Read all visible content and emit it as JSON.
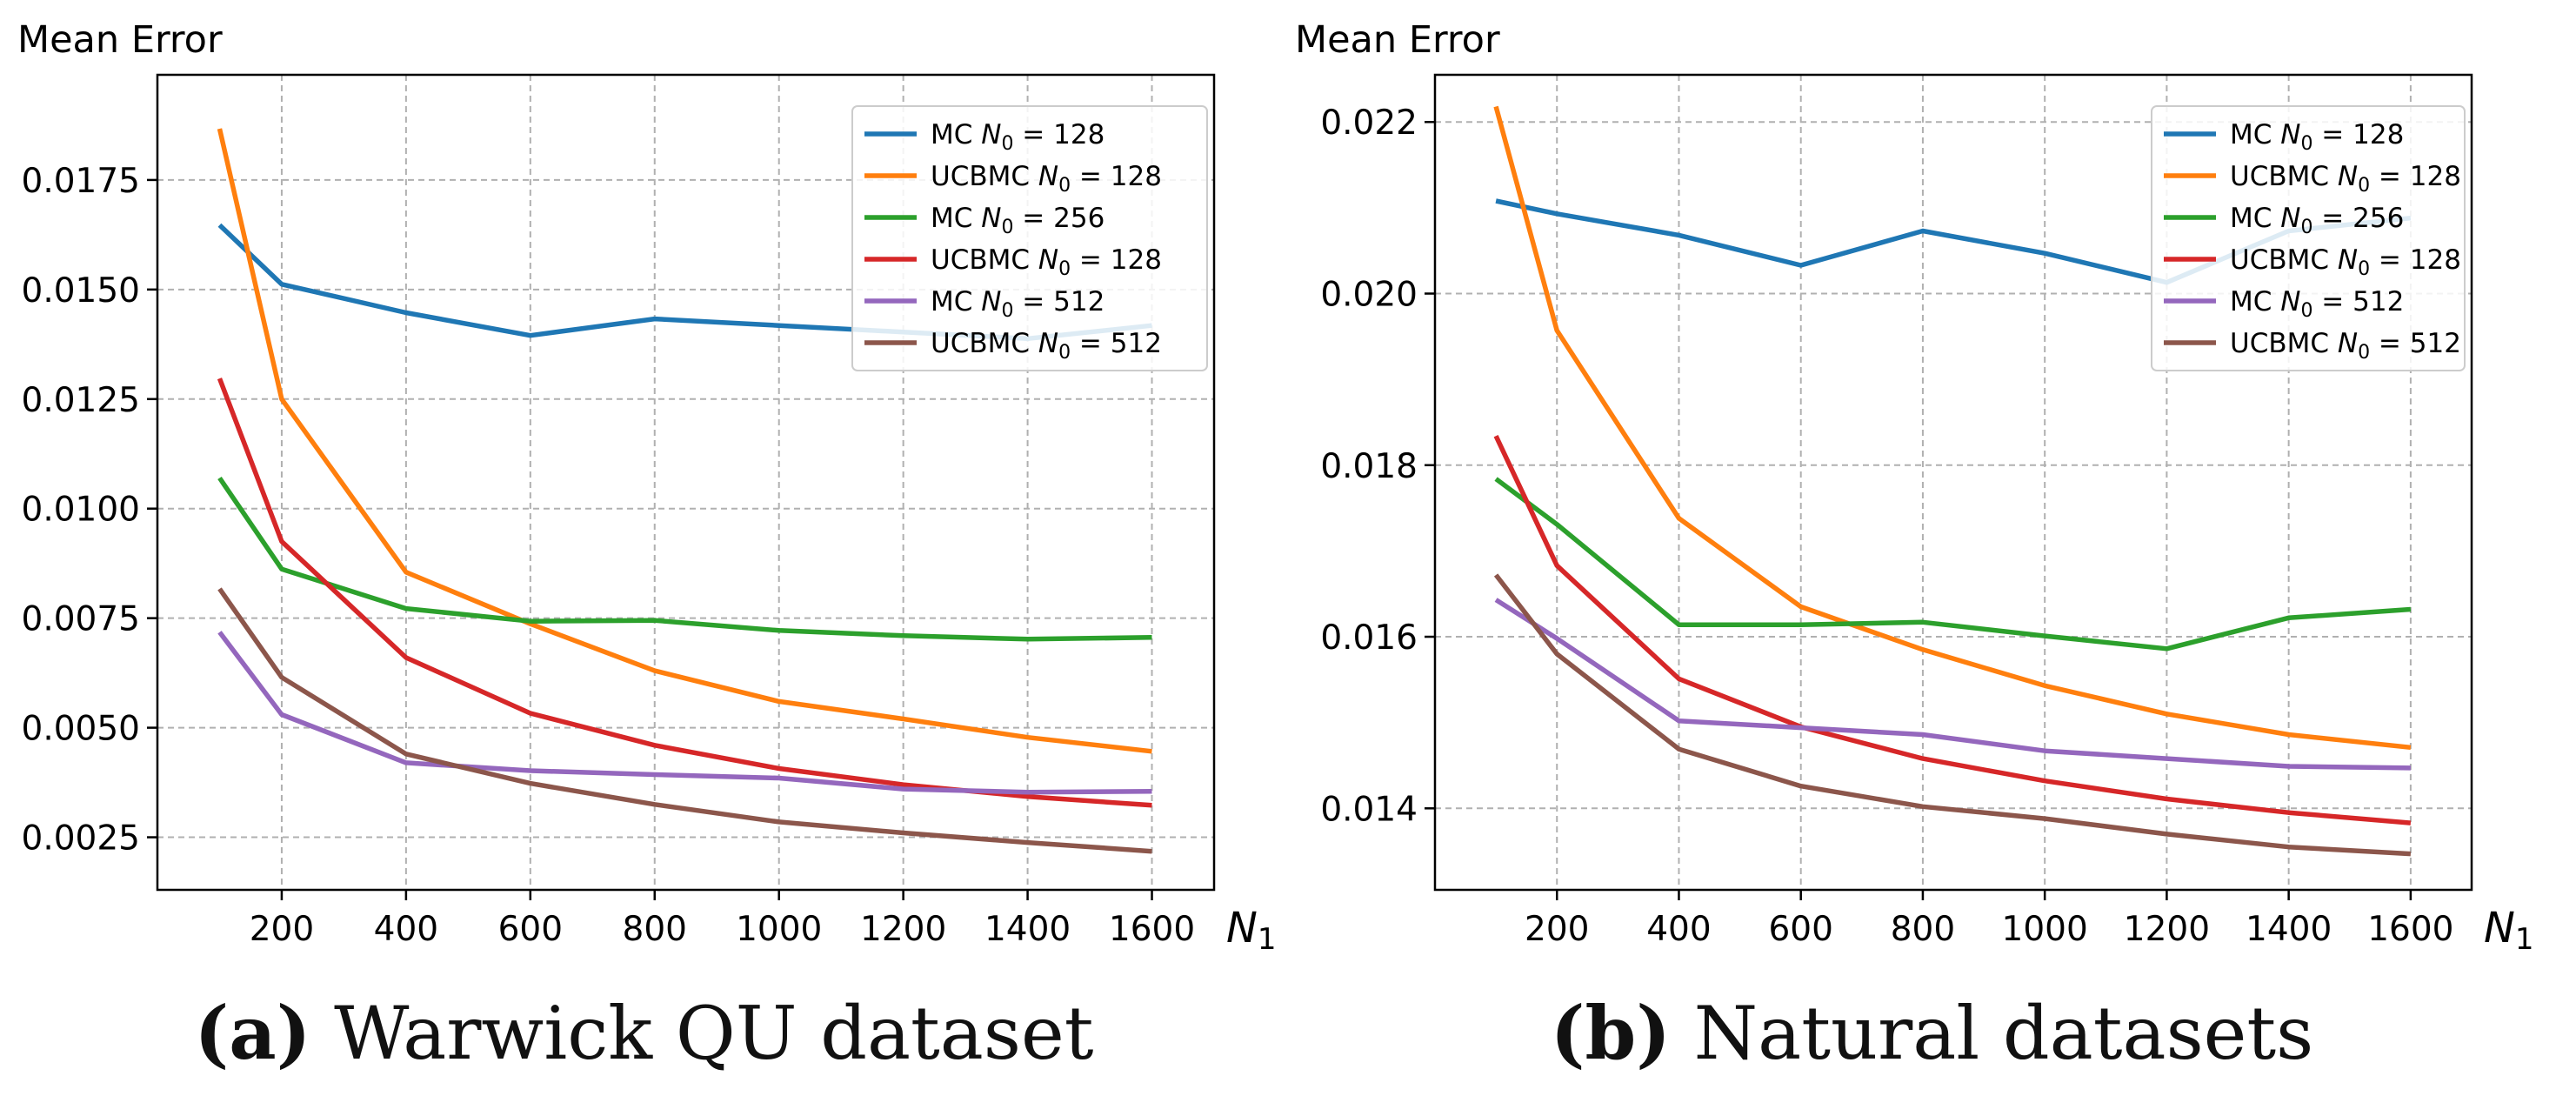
{
  "chart_data": [
    {
      "type": "line",
      "ylabel": "Mean Error",
      "xlabel": "N1",
      "x": [
        100,
        200,
        400,
        600,
        800,
        1000,
        1200,
        1400,
        1600
      ],
      "xticks": [
        "200",
        "400",
        "600",
        "800",
        "1000",
        "1200",
        "1400",
        "1600"
      ],
      "xtick_values": [
        200,
        400,
        600,
        800,
        1000,
        1200,
        1400,
        1600
      ],
      "yticks": [
        "0.0025",
        "0.0050",
        "0.0075",
        "0.0100",
        "0.0125",
        "0.0150",
        "0.0175"
      ],
      "ytick_values": [
        0.0025,
        0.005,
        0.0075,
        0.01,
        0.0125,
        0.015,
        0.0175
      ],
      "xlim": [
        0,
        1700
      ],
      "ylim": [
        0.0013,
        0.0199
      ],
      "grid": true,
      "legend_position": "upper right",
      "caption_letter": "(a)",
      "caption_text": " Warwick QU dataset",
      "series": [
        {
          "name": "MC N0 = 128",
          "color": "#1f77b4",
          "values": [
            0.01647,
            0.01512,
            0.01447,
            0.01395,
            0.01433,
            0.01418,
            0.01403,
            0.01388,
            0.01418
          ]
        },
        {
          "name": "UCBMC N0 = 128",
          "color": "#ff7f0e",
          "values": [
            0.01867,
            0.0125,
            0.00855,
            0.00737,
            0.0063,
            0.0056,
            0.0052,
            0.00478,
            0.00446
          ]
        },
        {
          "name": "MC N0 = 256",
          "color": "#2ca02c",
          "values": [
            0.0107,
            0.00862,
            0.00772,
            0.00743,
            0.00745,
            0.00722,
            0.0071,
            0.00702,
            0.00706
          ]
        },
        {
          "name": "UCBMC N0 = 128",
          "color": "#d62728",
          "values": [
            0.01297,
            0.00925,
            0.0066,
            0.00533,
            0.0046,
            0.00407,
            0.0037,
            0.00343,
            0.00323
          ]
        },
        {
          "name": "MC N0 = 512",
          "color": "#9467bd",
          "values": [
            0.00718,
            0.0053,
            0.0042,
            0.00402,
            0.00393,
            0.00385,
            0.0036,
            0.00353,
            0.00355
          ]
        },
        {
          "name": "UCBMC N0 = 512",
          "color": "#8c564b",
          "values": [
            0.00817,
            0.00615,
            0.0044,
            0.00373,
            0.00325,
            0.00285,
            0.0026,
            0.00238,
            0.00218
          ]
        }
      ]
    },
    {
      "type": "line",
      "ylabel": "Mean Error",
      "xlabel": "N1",
      "x": [
        100,
        200,
        400,
        600,
        800,
        1000,
        1200,
        1400,
        1600
      ],
      "xticks": [
        "200",
        "400",
        "600",
        "800",
        "1000",
        "1200",
        "1400",
        "1600"
      ],
      "xtick_values": [
        200,
        400,
        600,
        800,
        1000,
        1200,
        1400,
        1600
      ],
      "yticks": [
        "0.014",
        "0.016",
        "0.018",
        "0.020",
        "0.022"
      ],
      "ytick_values": [
        0.014,
        0.016,
        0.018,
        0.02,
        0.022
      ],
      "xlim": [
        0,
        1700
      ],
      "ylim": [
        0.01305,
        0.02255
      ],
      "grid": true,
      "legend_position": "upper right",
      "caption_letter": "(b)",
      "caption_text": " Natural datasets",
      "series": [
        {
          "name": "MC N0 = 128",
          "color": "#1f77b4",
          "values": [
            0.02108,
            0.02093,
            0.02068,
            0.02033,
            0.02073,
            0.02047,
            0.02013,
            0.02073,
            0.02088
          ]
        },
        {
          "name": "UCBMC N0 = 128",
          "color": "#ff7f0e",
          "values": [
            0.02218,
            0.01957,
            0.01738,
            0.01635,
            0.01585,
            0.01543,
            0.0151,
            0.01486,
            0.01471
          ]
        },
        {
          "name": "MC N0 = 256",
          "color": "#2ca02c",
          "values": [
            0.01784,
            0.01731,
            0.01614,
            0.01614,
            0.01617,
            0.01601,
            0.01586,
            0.01622,
            0.01632
          ]
        },
        {
          "name": "UCBMC N0 = 128",
          "color": "#d62728",
          "values": [
            0.01834,
            0.01683,
            0.01551,
            0.01495,
            0.01458,
            0.01432,
            0.01411,
            0.01395,
            0.01383
          ]
        },
        {
          "name": "MC N0 = 512",
          "color": "#9467bd",
          "values": [
            0.01643,
            0.01598,
            0.01502,
            0.01494,
            0.01486,
            0.01467,
            0.01458,
            0.01449,
            0.01447
          ]
        },
        {
          "name": "UCBMC N0 = 512",
          "color": "#8c564b",
          "values": [
            0.01672,
            0.0158,
            0.01469,
            0.01426,
            0.01402,
            0.01388,
            0.0137,
            0.01355,
            0.01347
          ]
        }
      ]
    }
  ]
}
